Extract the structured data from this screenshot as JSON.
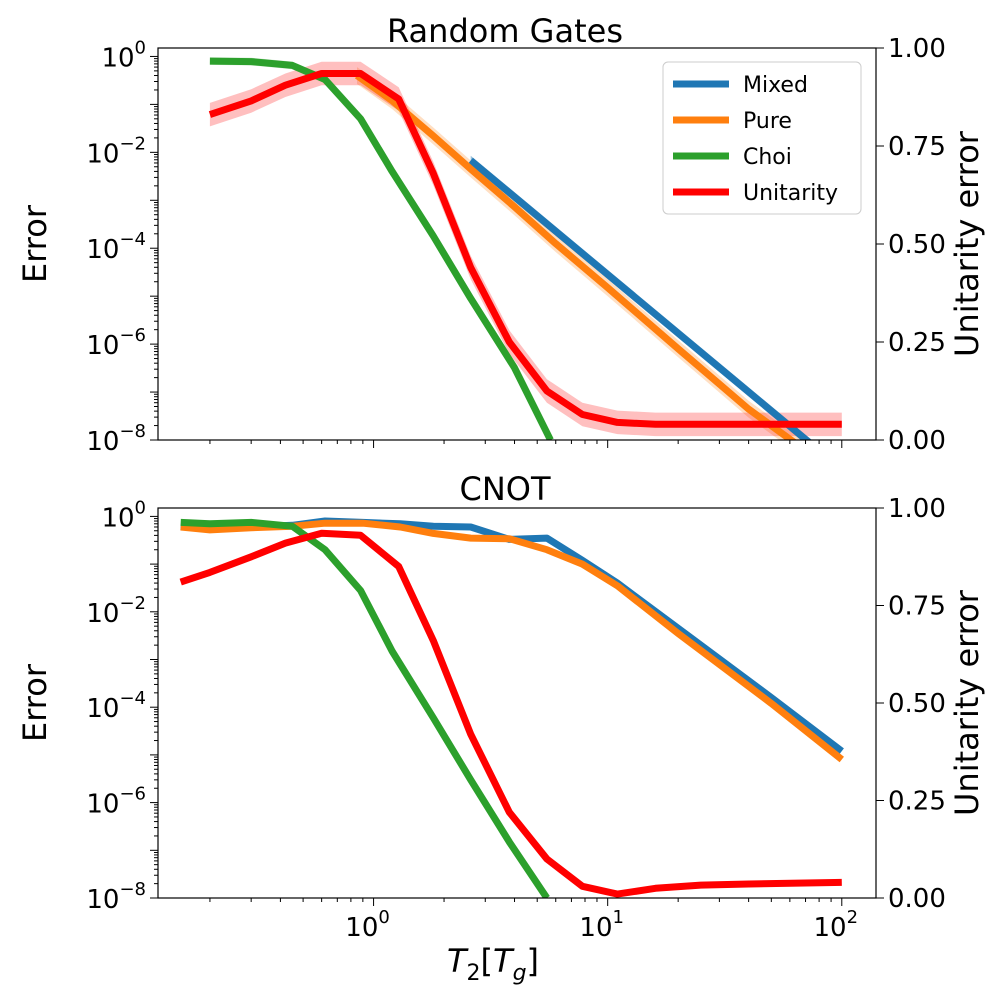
{
  "figure": {
    "xlabel": "T₂[Tᵍ]",
    "xlabel_base": "T",
    "xlabel_sub": "2",
    "xlabel_inner": "T",
    "xlabel_inner_sub": "g",
    "xscale": "log",
    "xlim": [
      0.12,
      140
    ],
    "xticks": [
      {
        "value": 1,
        "base": "10",
        "exp": "0"
      },
      {
        "value": 10,
        "base": "10",
        "exp": "1"
      },
      {
        "value": 100,
        "base": "10",
        "exp": "2"
      }
    ],
    "colors": {
      "Mixed": "#1f77b4",
      "Pure": "#ff7f0e",
      "Choi": "#2ca02c",
      "Unitarity": "#ff0000"
    }
  },
  "chart_data": [
    {
      "type": "line",
      "title": "Random Gates",
      "ylabel": "Error",
      "ylabel_right": "Unitarity error",
      "yscale": "log",
      "ylim": [
        1e-08,
        1.5
      ],
      "yticks": [
        {
          "value": 1,
          "base": "10",
          "exp": "0"
        },
        {
          "value": 0.01,
          "base": "10",
          "exp": "−2"
        },
        {
          "value": 0.0001,
          "base": "10",
          "exp": "−4"
        },
        {
          "value": 1e-06,
          "base": "10",
          "exp": "−6"
        },
        {
          "value": 1e-08,
          "base": "10",
          "exp": "−8"
        }
      ],
      "ylim_right": [
        0,
        1.0
      ],
      "yticks_right": [
        "0.00",
        "0.25",
        "0.50",
        "0.75",
        "1.00"
      ],
      "legend": {
        "placement": "top-right",
        "entries": [
          "Mixed",
          "Pure",
          "Choi",
          "Unitarity"
        ]
      },
      "series": [
        {
          "name": "Mixed",
          "axis": "left",
          "band": 1.25,
          "x": [
            2.6,
            80
          ],
          "y": [
            0.0068,
            6e-09
          ]
        },
        {
          "name": "Pure",
          "axis": "left",
          "band": 1.5,
          "x": [
            0.85,
            1.2,
            1.8,
            2.6,
            4,
            6,
            10,
            20,
            40,
            70
          ],
          "y": [
            0.4,
            0.12,
            0.022,
            0.0045,
            0.00073,
            0.000125,
            1.5e-05,
            8e-07,
            4.4e-08,
            6e-09
          ]
        },
        {
          "name": "Choi",
          "axis": "left",
          "band": 1.2,
          "x": [
            0.2,
            0.3,
            0.45,
            0.62,
            0.88,
            1.2,
            1.8,
            2.6,
            4,
            5.7
          ],
          "y": [
            0.8,
            0.78,
            0.65,
            0.33,
            0.05,
            0.004,
            0.00018,
            9e-06,
            3.2e-07,
            1e-08
          ]
        },
        {
          "name": "Unitarity",
          "axis": "right",
          "band": 0.03,
          "x": [
            0.2,
            0.3,
            0.42,
            0.6,
            0.88,
            1.28,
            1.8,
            2.6,
            3.8,
            5.5,
            7.8,
            11,
            16,
            25,
            40,
            100
          ],
          "y": [
            0.83,
            0.865,
            0.905,
            0.935,
            0.935,
            0.87,
            0.68,
            0.44,
            0.25,
            0.125,
            0.065,
            0.045,
            0.04,
            0.04,
            0.04,
            0.04
          ]
        }
      ]
    },
    {
      "type": "line",
      "title": "CNOT",
      "ylabel": "Error",
      "ylabel_right": "Unitarity error",
      "yscale": "log",
      "ylim": [
        1e-08,
        1.5
      ],
      "yticks": [
        {
          "value": 1,
          "base": "10",
          "exp": "0"
        },
        {
          "value": 0.01,
          "base": "10",
          "exp": "−2"
        },
        {
          "value": 0.0001,
          "base": "10",
          "exp": "−4"
        },
        {
          "value": 1e-06,
          "base": "10",
          "exp": "−6"
        },
        {
          "value": 1e-08,
          "base": "10",
          "exp": "−8"
        }
      ],
      "ylim_right": [
        0,
        1.0
      ],
      "yticks_right": [
        "0.00",
        "0.25",
        "0.50",
        "0.75",
        "1.00"
      ],
      "series": [
        {
          "name": "Mixed",
          "axis": "left",
          "x": [
            0.15,
            0.2,
            0.3,
            0.45,
            0.62,
            0.9,
            1.3,
            1.8,
            2.6,
            3.8,
            5.5,
            7.8,
            11,
            20,
            50,
            100
          ],
          "y": [
            0.62,
            0.55,
            0.6,
            0.65,
            0.8,
            0.75,
            0.7,
            0.62,
            0.6,
            0.33,
            0.35,
            0.12,
            0.04,
            0.0045,
            0.00016,
            1.2e-05
          ]
        },
        {
          "name": "Pure",
          "axis": "left",
          "x": [
            0.15,
            0.2,
            0.3,
            0.45,
            0.62,
            0.9,
            1.3,
            1.8,
            2.6,
            3.8,
            5.5,
            7.8,
            11,
            20,
            50,
            100
          ],
          "y": [
            0.6,
            0.52,
            0.58,
            0.62,
            0.72,
            0.72,
            0.6,
            0.44,
            0.35,
            0.34,
            0.2,
            0.1,
            0.035,
            0.0035,
            0.00012,
            8e-06
          ]
        },
        {
          "name": "Choi",
          "axis": "left",
          "x": [
            0.15,
            0.2,
            0.3,
            0.45,
            0.62,
            0.88,
            1.2,
            1.8,
            2.6,
            3.8,
            5.5
          ],
          "y": [
            0.75,
            0.7,
            0.75,
            0.62,
            0.2,
            0.028,
            0.0015,
            6e-05,
            3e-06,
            1.5e-07,
            1e-08
          ]
        },
        {
          "name": "Unitarity",
          "axis": "right",
          "x": [
            0.15,
            0.2,
            0.3,
            0.42,
            0.6,
            0.88,
            1.28,
            1.8,
            2.6,
            3.8,
            5.5,
            7.8,
            11,
            16,
            25,
            40,
            100
          ],
          "y": [
            0.81,
            0.835,
            0.875,
            0.91,
            0.935,
            0.93,
            0.85,
            0.66,
            0.42,
            0.22,
            0.1,
            0.03,
            0.01,
            0.025,
            0.033,
            0.036,
            0.04
          ]
        }
      ]
    }
  ]
}
